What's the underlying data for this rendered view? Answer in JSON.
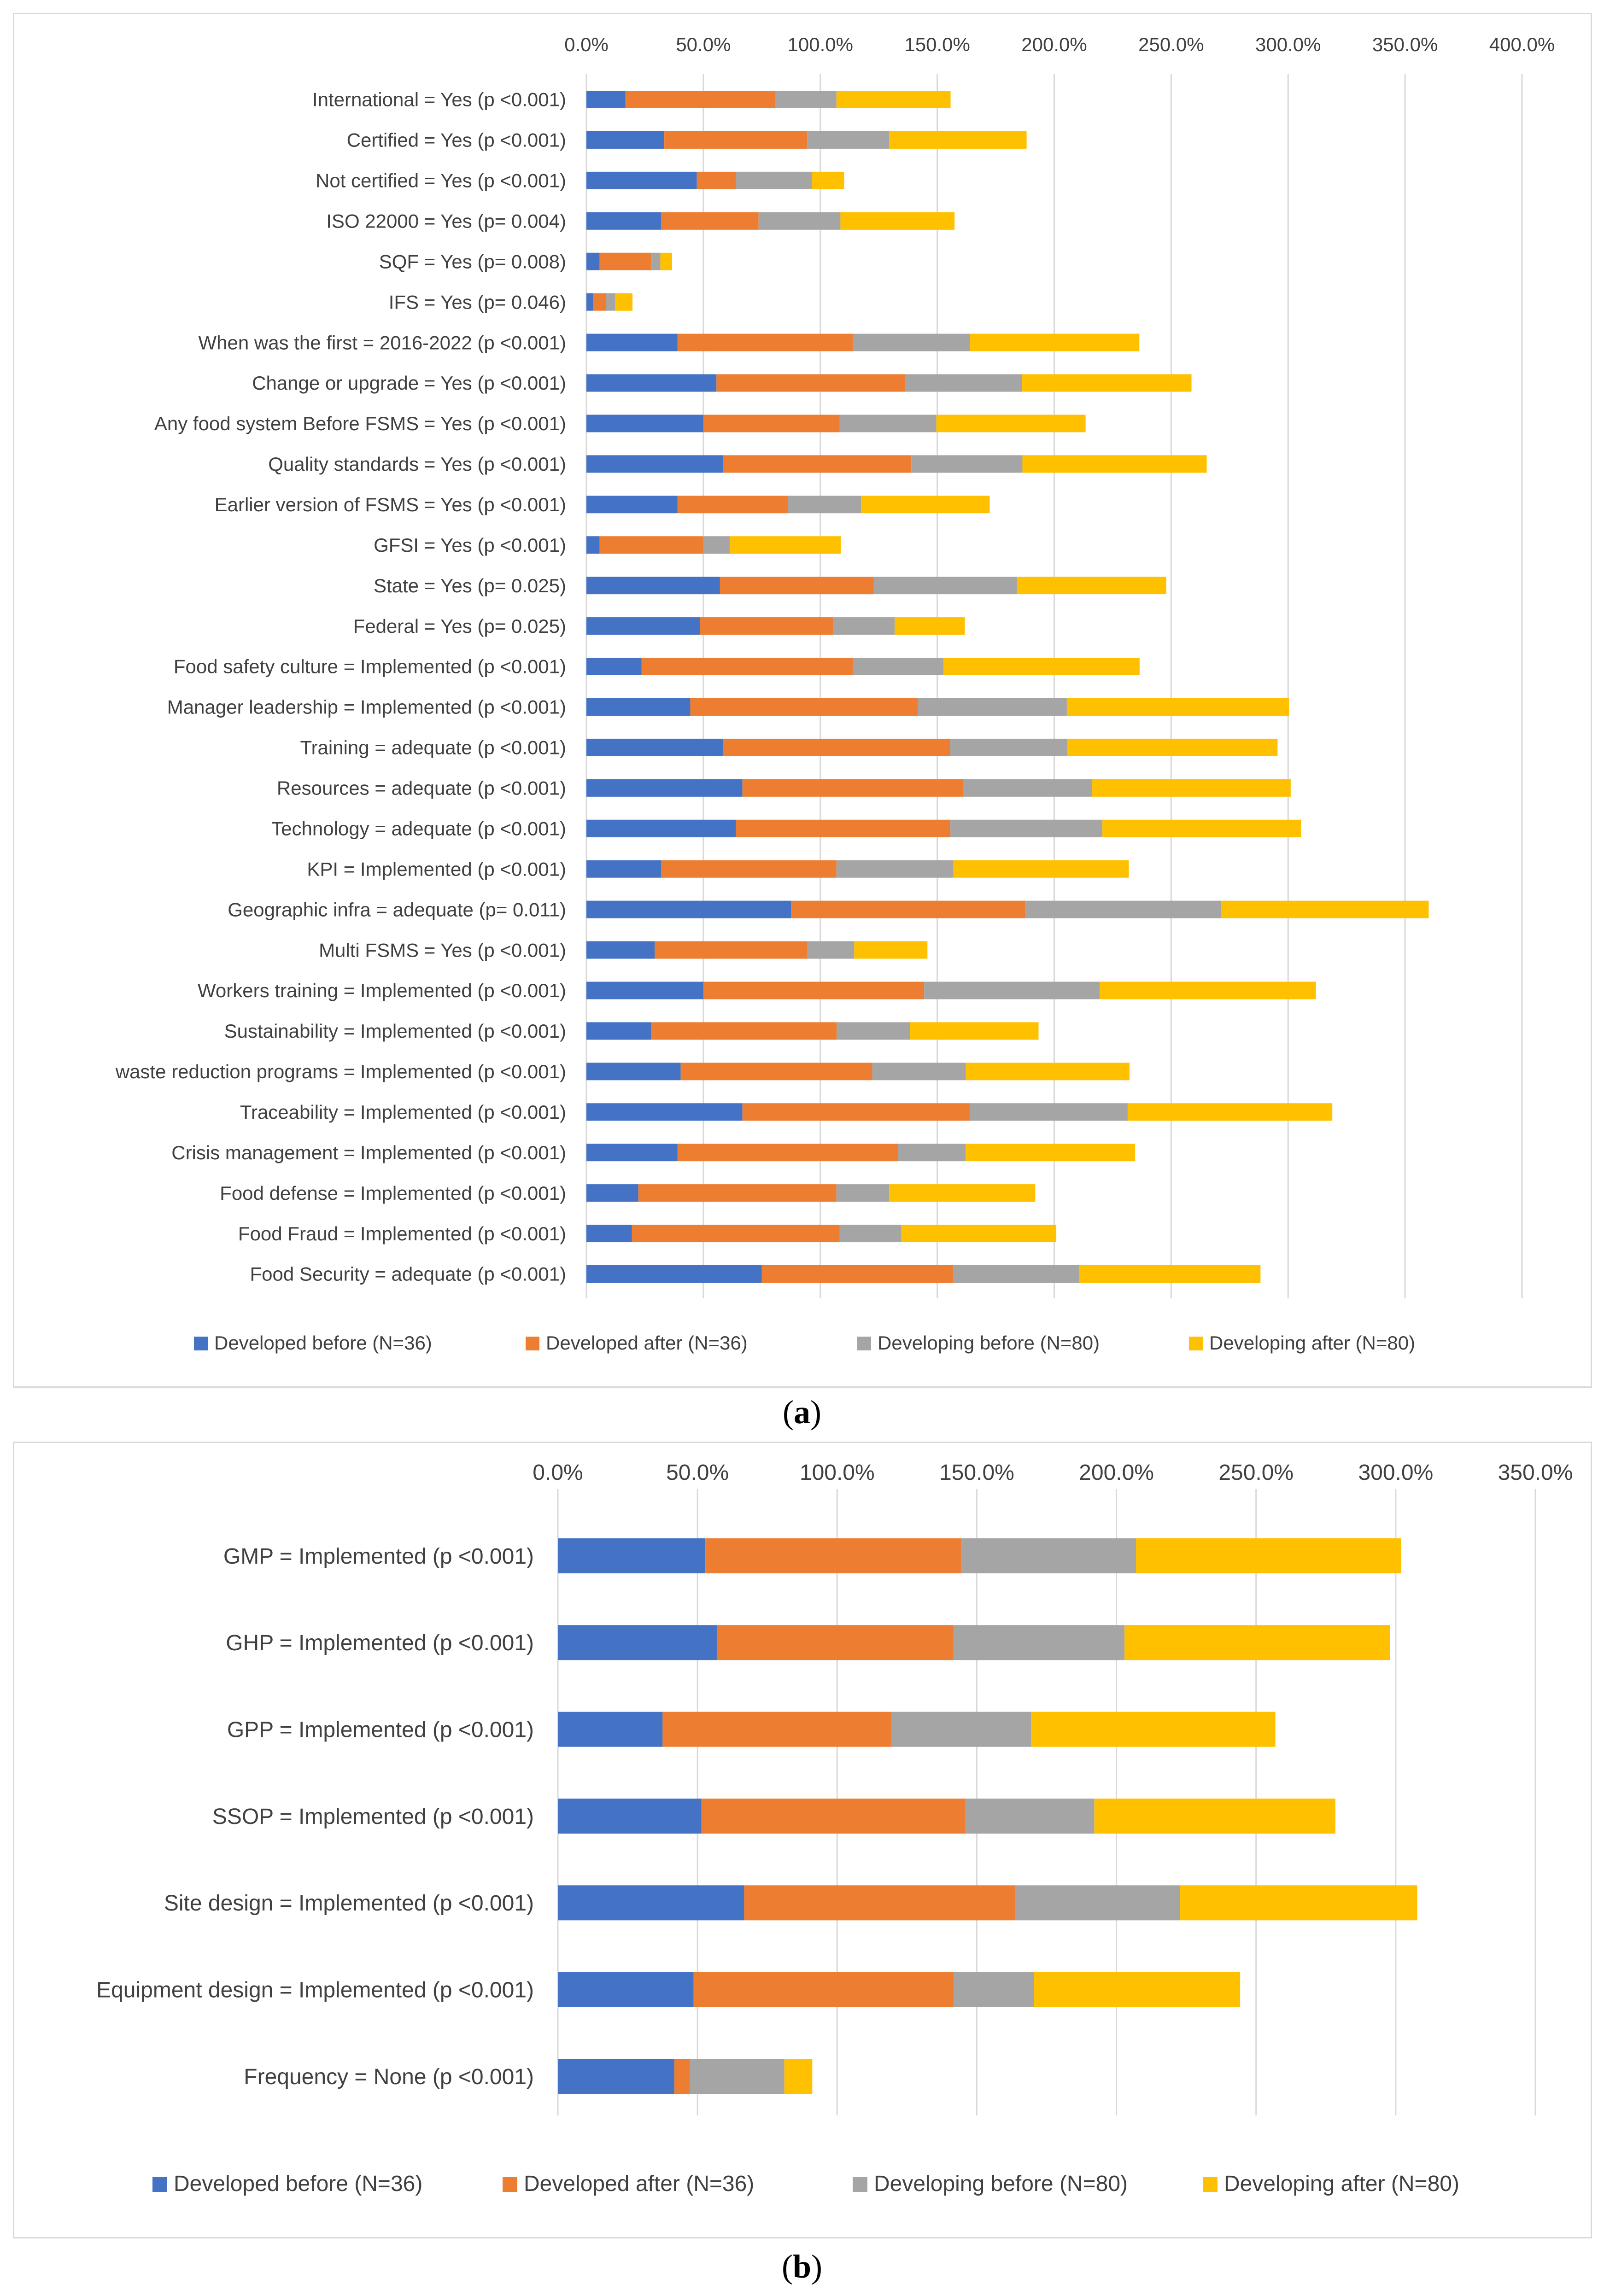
{
  "captions": [
    "(a)",
    "(b)"
  ],
  "chart_data": [
    {
      "type": "bar",
      "orientation": "horizontal",
      "stacked": true,
      "panel": "a",
      "xlim": [
        0,
        400
      ],
      "x_tick_labels": [
        "0.0%",
        "50.0%",
        "100.0%",
        "150.0%",
        "200.0%",
        "250.0%",
        "300.0%",
        "350.0%",
        "400.0%"
      ],
      "grid": true,
      "legend_position": "bottom",
      "categories": [
        "International = Yes (p <0.001)",
        "Certified = Yes (p <0.001)",
        "Not certified = Yes (p <0.001)",
        "ISO 22000 = Yes (p= 0.004)",
        "SQF = Yes (p= 0.008)",
        "IFS = Yes (p= 0.046)",
        "When was the first = 2016-2022 (p <0.001)",
        "Change or upgrade = Yes (p <0.001)",
        "Any food system Before FSMS = Yes (p <0.001)",
        "Quality standards  = Yes (p <0.001)",
        "Earlier version of FSMS = Yes (p <0.001)",
        "GFSI  = Yes (p <0.001)",
        "State = Yes (p= 0.025)",
        "Federal = Yes (p= 0.025)",
        "Food safety culture = Implemented (p <0.001)",
        "Manager leadership = Implemented (p <0.001)",
        "Training = adequate (p <0.001)",
        "Resources = adequate (p <0.001)",
        "Technology = adequate (p <0.001)",
        "KPI = Implemented (p <0.001)",
        "Geographic infra = adequate (p= 0.011)",
        "Multi FSMS = Yes (p <0.001)",
        "Workers training = Implemented (p <0.001)",
        "Sustainability = Implemented (p <0.001)",
        "waste reduction programs = Implemented (p <0.001)",
        "Traceability = Implemented (p <0.001)",
        "Crisis management = Implemented (p <0.001)",
        "Food defense = Implemented (p <0.001)",
        "Food Fraud = Implemented (p <0.001)",
        "Food Security = adequate (p <0.001)"
      ],
      "series": [
        {
          "name": "Developed before (N=36)",
          "color": "#4472c4",
          "values": [
            16.7,
            33.3,
            47.2,
            31.9,
            5.6,
            2.8,
            38.9,
            55.6,
            50.0,
            58.3,
            38.9,
            5.6,
            57.1,
            48.6,
            23.6,
            44.4,
            58.3,
            66.7,
            63.9,
            31.9,
            87.5,
            29.2,
            50.0,
            27.8,
            40.3,
            66.7,
            38.9,
            22.2,
            19.4,
            75.0
          ]
        },
        {
          "name": "Developed after (N=36)",
          "color": "#ed7d31",
          "values": [
            63.9,
            61.1,
            16.7,
            41.7,
            22.2,
            5.6,
            75.0,
            80.6,
            58.3,
            80.6,
            47.2,
            44.4,
            65.7,
            56.9,
            90.3,
            97.2,
            97.2,
            94.4,
            91.7,
            75.0,
            100.0,
            65.3,
            94.4,
            79.2,
            81.9,
            97.2,
            94.4,
            84.7,
            88.9,
            81.9
          ]
        },
        {
          "name": "Developing before (N=80)",
          "color": "#a5a5a5",
          "values": [
            26.3,
            35.0,
            32.5,
            35.0,
            3.8,
            3.8,
            50.0,
            50.0,
            41.3,
            47.5,
            31.3,
            11.3,
            61.3,
            26.3,
            38.8,
            63.8,
            50.0,
            55.0,
            65.0,
            50.0,
            83.8,
            20.0,
            75.0,
            31.3,
            40.0,
            67.5,
            28.8,
            22.5,
            26.3,
            53.8
          ]
        },
        {
          "name": "Developing after (N=80)",
          "color": "#ffc000",
          "values": [
            48.8,
            58.8,
            13.8,
            48.8,
            5.0,
            7.5,
            72.5,
            72.5,
            63.8,
            78.8,
            55.0,
            47.5,
            63.8,
            30.0,
            83.8,
            95.0,
            90.0,
            85.0,
            85.0,
            75.0,
            88.8,
            31.3,
            92.5,
            55.0,
            70.0,
            87.5,
            72.5,
            62.5,
            66.3,
            77.5
          ]
        }
      ]
    },
    {
      "type": "bar",
      "orientation": "horizontal",
      "stacked": true,
      "panel": "b",
      "xlim": [
        0,
        350
      ],
      "x_tick_labels": [
        "0.0%",
        "50.0%",
        "100.0%",
        "150.0%",
        "200.0%",
        "250.0%",
        "300.0%",
        "350.0%"
      ],
      "grid": true,
      "legend_position": "bottom",
      "categories": [
        "GMP = Implemented (p <0.001)",
        "GHP = Implemented (p <0.001)",
        "GPP = Implemented (p <0.001)",
        "SSOP = Implemented (p <0.001)",
        "Site design = Implemented (p <0.001)",
        "Equipment design = Implemented (p <0.001)",
        "Frequency = None (p <0.001)"
      ],
      "series": [
        {
          "name": "Developed before (N=36)",
          "color": "#4472c4",
          "values": [
            52.8,
            56.9,
            37.5,
            51.4,
            66.7,
            48.6,
            41.7
          ]
        },
        {
          "name": "Developed after (N=36)",
          "color": "#ed7d31",
          "values": [
            91.7,
            84.7,
            81.9,
            94.4,
            97.2,
            93.1,
            5.6
          ]
        },
        {
          "name": "Developing before (N=80)",
          "color": "#a5a5a5",
          "values": [
            62.5,
            61.3,
            50.0,
            46.3,
            58.8,
            28.8,
            33.8
          ]
        },
        {
          "name": "Developing after (N=80)",
          "color": "#ffc000",
          "values": [
            95.0,
            95.0,
            87.5,
            86.3,
            85.0,
            73.8,
            10.0
          ]
        }
      ]
    }
  ]
}
